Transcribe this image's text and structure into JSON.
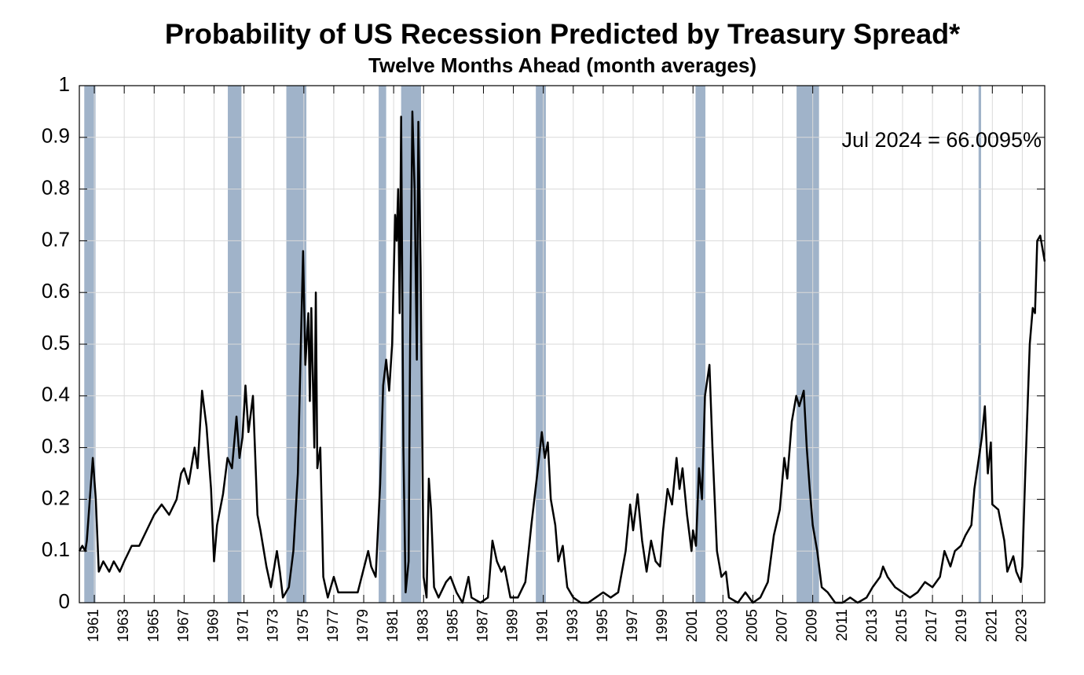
{
  "chart_data": {
    "type": "line",
    "title": "Probability of US Recession Predicted by Treasury Spread*",
    "subtitle": "Twelve Months Ahead (month averages)",
    "annotation": "Jul 2024 = 66.0095%",
    "grid": true,
    "xlim": [
      1960,
      2024.5
    ],
    "ylim": [
      0,
      1
    ],
    "yticks": [
      0,
      0.1,
      0.2,
      0.3,
      0.4,
      0.5,
      0.6,
      0.7,
      0.8,
      0.9,
      1
    ],
    "xticks": [
      1961,
      1963,
      1965,
      1967,
      1969,
      1971,
      1973,
      1975,
      1977,
      1979,
      1981,
      1983,
      1985,
      1987,
      1989,
      1991,
      1993,
      1995,
      1997,
      1999,
      2001,
      2003,
      2005,
      2007,
      2009,
      2011,
      2013,
      2015,
      2017,
      2019,
      2021,
      2023
    ],
    "recession_color": "#a0b3c9",
    "recessions": [
      [
        1960.33,
        1961.08
      ],
      [
        1969.92,
        1970.83
      ],
      [
        1973.83,
        1975.17
      ],
      [
        1980.0,
        1980.5
      ],
      [
        1981.5,
        1982.83
      ],
      [
        1990.5,
        1991.17
      ],
      [
        2001.17,
        2001.83
      ],
      [
        2007.92,
        2009.42
      ],
      [
        2020.08,
        2020.25
      ]
    ],
    "x": [
      1960.0,
      1960.2,
      1960.4,
      1960.5,
      1960.7,
      1960.9,
      1961.1,
      1961.3,
      1961.6,
      1962.0,
      1962.3,
      1962.7,
      1963.0,
      1963.5,
      1964.0,
      1964.5,
      1965.0,
      1965.5,
      1966.0,
      1966.5,
      1966.8,
      1967.0,
      1967.3,
      1967.7,
      1967.9,
      1968.2,
      1968.5,
      1968.8,
      1969.0,
      1969.2,
      1969.6,
      1969.9,
      1970.2,
      1970.5,
      1970.7,
      1970.9,
      1971.1,
      1971.3,
      1971.6,
      1971.9,
      1972.1,
      1972.5,
      1972.8,
      1973.2,
      1973.4,
      1973.6,
      1974.0,
      1974.3,
      1974.6,
      1974.8,
      1974.95,
      1975.1,
      1975.3,
      1975.4,
      1975.5,
      1975.7,
      1975.8,
      1975.9,
      1976.1,
      1976.3,
      1976.6,
      1977.0,
      1977.3,
      1978.0,
      1978.6,
      1979.3,
      1979.5,
      1979.8,
      1980.1,
      1980.3,
      1980.5,
      1980.7,
      1980.9,
      1981.1,
      1981.2,
      1981.3,
      1981.4,
      1981.5,
      1981.65,
      1981.8,
      1982.0,
      1982.1,
      1982.25,
      1982.4,
      1982.55,
      1982.65,
      1982.8,
      1983.0,
      1983.2,
      1983.35,
      1983.5,
      1983.7,
      1984.0,
      1984.5,
      1984.8,
      1985.2,
      1985.6,
      1986.0,
      1986.2,
      1986.8,
      1987.3,
      1987.6,
      1987.9,
      1988.2,
      1988.4,
      1988.8,
      1989.3,
      1989.8,
      1990.2,
      1990.6,
      1990.9,
      1991.1,
      1991.3,
      1991.5,
      1991.8,
      1992.0,
      1992.3,
      1992.6,
      1993.0,
      1993.5,
      1994.0,
      1994.5,
      1995.0,
      1995.5,
      1996.0,
      1996.5,
      1996.8,
      1997.0,
      1997.3,
      1997.6,
      1997.9,
      1998.2,
      1998.5,
      1998.8,
      1999.0,
      1999.3,
      1999.6,
      1999.9,
      2000.1,
      2000.3,
      2000.6,
      2000.9,
      2001.0,
      2001.2,
      2001.4,
      2001.6,
      2001.8,
      2002.1,
      2002.3,
      2002.6,
      2002.9,
      2003.2,
      2003.4,
      2004.0,
      2004.5,
      2005.0,
      2005.5,
      2006.0,
      2006.4,
      2006.8,
      2007.1,
      2007.3,
      2007.6,
      2007.9,
      2008.1,
      2008.4,
      2008.6,
      2008.8,
      2009.0,
      2009.3,
      2009.6,
      2010.0,
      2010.5,
      2011.0,
      2011.5,
      2012.0,
      2012.6,
      2013.0,
      2013.5,
      2013.7,
      2014.0,
      2014.5,
      2015.0,
      2015.5,
      2016.0,
      2016.5,
      2017.0,
      2017.5,
      2017.8,
      2018.2,
      2018.5,
      2018.9,
      2019.2,
      2019.6,
      2019.8,
      2020.0,
      2020.3,
      2020.5,
      2020.7,
      2020.9,
      2021.0,
      2021.4,
      2021.8,
      2022.0,
      2022.4,
      2022.6,
      2022.9,
      2023.0,
      2023.2,
      2023.5,
      2023.7,
      2023.85,
      2024.0,
      2024.2,
      2024.5
    ],
    "series": [
      {
        "color": "#000000",
        "values": [
          0.1,
          0.11,
          0.1,
          0.12,
          0.2,
          0.28,
          0.2,
          0.06,
          0.08,
          0.06,
          0.08,
          0.06,
          0.08,
          0.11,
          0.11,
          0.14,
          0.17,
          0.19,
          0.17,
          0.2,
          0.25,
          0.26,
          0.23,
          0.3,
          0.26,
          0.41,
          0.34,
          0.22,
          0.08,
          0.15,
          0.21,
          0.28,
          0.26,
          0.36,
          0.28,
          0.32,
          0.42,
          0.33,
          0.4,
          0.17,
          0.14,
          0.07,
          0.03,
          0.1,
          0.06,
          0.01,
          0.03,
          0.1,
          0.25,
          0.5,
          0.68,
          0.46,
          0.56,
          0.39,
          0.57,
          0.3,
          0.6,
          0.26,
          0.3,
          0.05,
          0.01,
          0.05,
          0.02,
          0.02,
          0.02,
          0.1,
          0.07,
          0.05,
          0.23,
          0.42,
          0.47,
          0.41,
          0.5,
          0.75,
          0.7,
          0.8,
          0.56,
          0.94,
          0.3,
          0.02,
          0.08,
          0.5,
          0.95,
          0.8,
          0.47,
          0.93,
          0.65,
          0.05,
          0.01,
          0.24,
          0.18,
          0.03,
          0.01,
          0.04,
          0.05,
          0.02,
          0.0,
          0.05,
          0.01,
          0.0,
          0.01,
          0.12,
          0.08,
          0.06,
          0.07,
          0.01,
          0.01,
          0.04,
          0.15,
          0.25,
          0.33,
          0.28,
          0.31,
          0.2,
          0.15,
          0.08,
          0.11,
          0.03,
          0.01,
          0.0,
          0.0,
          0.01,
          0.02,
          0.01,
          0.02,
          0.1,
          0.19,
          0.14,
          0.21,
          0.12,
          0.06,
          0.12,
          0.08,
          0.07,
          0.14,
          0.22,
          0.19,
          0.28,
          0.22,
          0.26,
          0.17,
          0.1,
          0.14,
          0.11,
          0.26,
          0.2,
          0.4,
          0.46,
          0.3,
          0.1,
          0.05,
          0.06,
          0.01,
          0.0,
          0.02,
          0.0,
          0.01,
          0.04,
          0.13,
          0.18,
          0.28,
          0.24,
          0.35,
          0.4,
          0.38,
          0.41,
          0.3,
          0.22,
          0.15,
          0.1,
          0.03,
          0.02,
          0.0,
          0.0,
          0.01,
          0.0,
          0.01,
          0.03,
          0.05,
          0.07,
          0.05,
          0.03,
          0.02,
          0.01,
          0.02,
          0.04,
          0.03,
          0.05,
          0.1,
          0.07,
          0.1,
          0.11,
          0.13,
          0.15,
          0.22,
          0.26,
          0.32,
          0.38,
          0.25,
          0.31,
          0.19,
          0.18,
          0.12,
          0.06,
          0.09,
          0.06,
          0.04,
          0.07,
          0.25,
          0.5,
          0.57,
          0.56,
          0.7,
          0.71,
          0.660095
        ]
      }
    ]
  }
}
